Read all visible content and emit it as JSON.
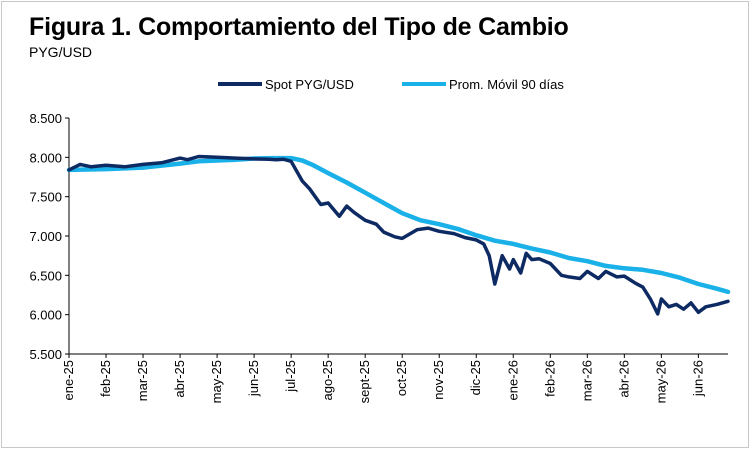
{
  "title": "Figura 1. Comportamiento  del Tipo de Cambio",
  "subtitle": "PYG/USD",
  "chart_data": {
    "type": "line",
    "title": "Figura 1. Comportamiento  del Tipo de Cambio",
    "subtitle": "PYG/USD",
    "ylabel": "",
    "xlabel": "",
    "ylim": [
      5500,
      8500
    ],
    "yticks": [
      5500,
      6000,
      6500,
      7000,
      7500,
      8000,
      8500
    ],
    "ytick_labels": [
      "5.500",
      "6.000",
      "6.500",
      "7.000",
      "7.500",
      "8.000",
      "8.500"
    ],
    "xtick_labels": [
      "ene-25",
      "feb-25",
      "mar-25",
      "abr-25",
      "may-25",
      "jun-25",
      "jul-25",
      "ago-25",
      "sept-25",
      "oct-25",
      "nov-25",
      "dic-25",
      "ene-26",
      "feb-26",
      "mar-26",
      "abr-26",
      "may-26",
      "jun-26"
    ],
    "legend_position": "top",
    "grid": false,
    "colors": {
      "spot": "#0d2a63",
      "avg": "#1ab0e8"
    },
    "series": [
      {
        "name": "Spot PYG/USD",
        "x": [
          0,
          0.3,
          0.6,
          1.0,
          1.5,
          2.0,
          2.5,
          3.0,
          3.2,
          3.5,
          4.0,
          4.5,
          5.0,
          5.4,
          5.6,
          5.8,
          6.0,
          6.3,
          6.5,
          6.8,
          7.0,
          7.3,
          7.5,
          7.7,
          8.0,
          8.3,
          8.5,
          8.8,
          9.0,
          9.4,
          9.7,
          10.0,
          10.4,
          10.7,
          11.0,
          11.2,
          11.35,
          11.5,
          11.7,
          11.9,
          12.0,
          12.2,
          12.35,
          12.5,
          12.7,
          13.0,
          13.3,
          13.5,
          13.8,
          14.0,
          14.3,
          14.5,
          14.8,
          15.0,
          15.3,
          15.5,
          15.7,
          15.9,
          16.0,
          16.2,
          16.4,
          16.6,
          16.8,
          17.0,
          17.2,
          17.5,
          17.8
        ],
        "values": [
          7840,
          7910,
          7880,
          7900,
          7880,
          7910,
          7930,
          7990,
          7970,
          8010,
          8000,
          7990,
          7980,
          7975,
          7970,
          7975,
          7950,
          7700,
          7600,
          7400,
          7420,
          7250,
          7380,
          7300,
          7200,
          7150,
          7050,
          6990,
          6970,
          7080,
          7100,
          7060,
          7030,
          6980,
          6950,
          6900,
          6750,
          6390,
          6750,
          6580,
          6700,
          6530,
          6780,
          6700,
          6710,
          6650,
          6500,
          6480,
          6460,
          6550,
          6460,
          6550,
          6480,
          6490,
          6400,
          6350,
          6200,
          6010,
          6200,
          6100,
          6130,
          6070,
          6150,
          6030,
          6100,
          6130,
          6170
        ]
      },
      {
        "name": "Prom. Móvil 90 días",
        "x": [
          0,
          1.0,
          2.0,
          3.0,
          3.5,
          4.0,
          4.5,
          5.0,
          5.5,
          6.0,
          6.3,
          6.6,
          7.0,
          7.5,
          8.0,
          8.5,
          9.0,
          9.5,
          10.0,
          10.5,
          11.0,
          11.5,
          12.0,
          12.5,
          13.0,
          13.5,
          14.0,
          14.5,
          15.0,
          15.5,
          16.0,
          16.5,
          17.0,
          17.5,
          17.8
        ],
        "values": [
          7840,
          7850,
          7870,
          7920,
          7950,
          7960,
          7970,
          7985,
          7990,
          7990,
          7960,
          7900,
          7800,
          7680,
          7550,
          7420,
          7290,
          7200,
          7150,
          7090,
          7010,
          6940,
          6900,
          6840,
          6790,
          6720,
          6680,
          6620,
          6590,
          6570,
          6530,
          6470,
          6390,
          6330,
          6290
        ]
      }
    ]
  }
}
